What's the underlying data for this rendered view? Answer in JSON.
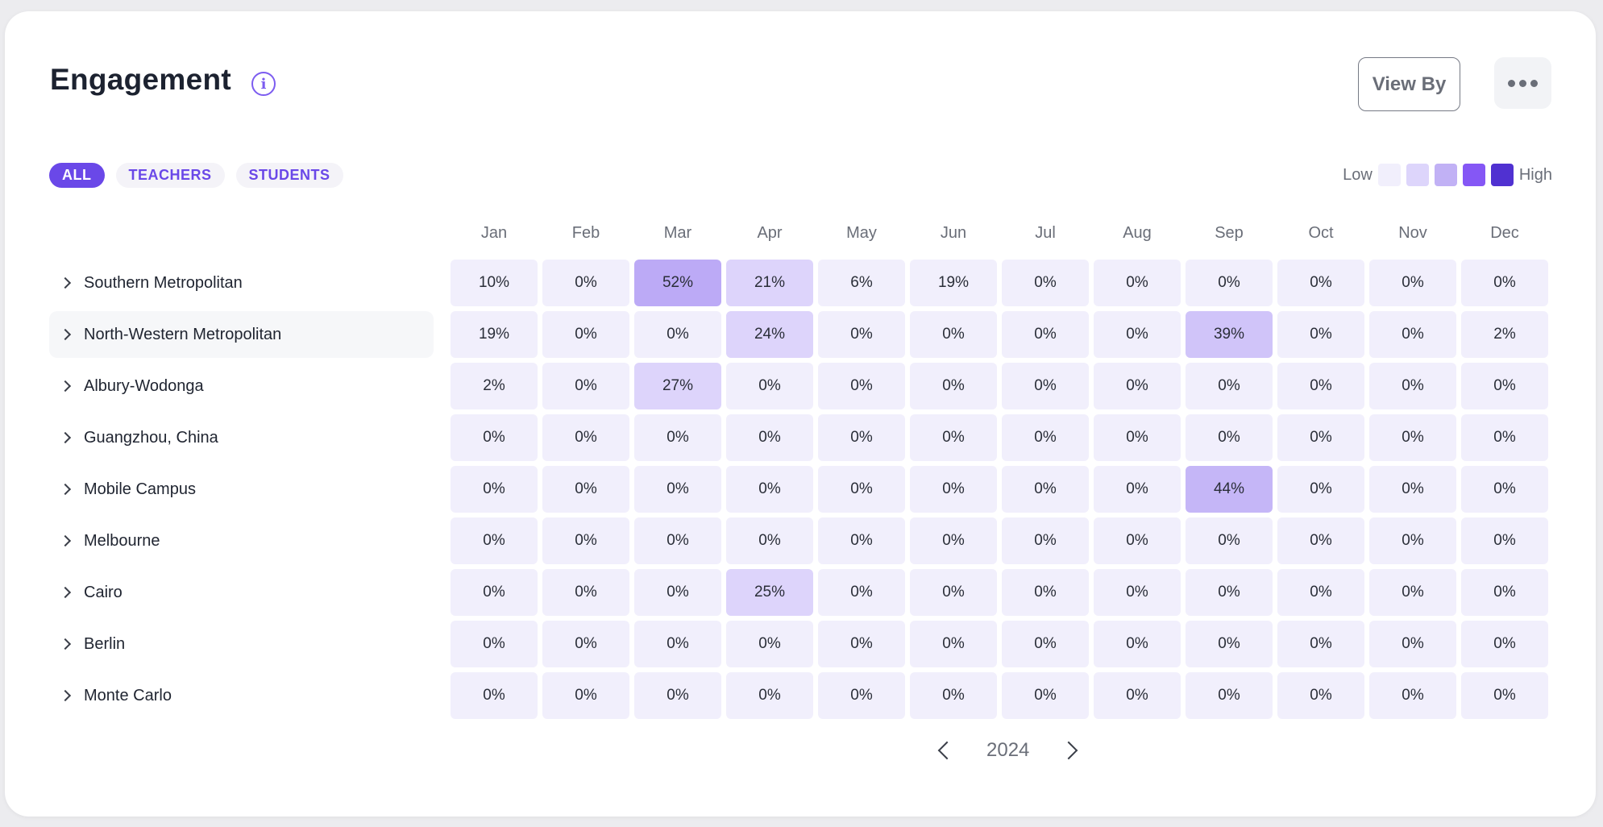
{
  "header": {
    "title": "Engagement",
    "info_icon": "info-icon",
    "view_by_label": "View By",
    "more_icon": "more-horizontal-icon"
  },
  "filters": [
    {
      "label": "ALL",
      "active": true
    },
    {
      "label": "TEACHERS",
      "active": false
    },
    {
      "label": "STUDENTS",
      "active": false
    }
  ],
  "legend": {
    "low": "Low",
    "high": "High",
    "colors": [
      "#f1effc",
      "#ddd5fb",
      "#c1b1f5",
      "#8557f5",
      "#5031d1"
    ]
  },
  "months": [
    "Jan",
    "Feb",
    "Mar",
    "Apr",
    "May",
    "Jun",
    "Jul",
    "Aug",
    "Sep",
    "Oct",
    "Nov",
    "Dec"
  ],
  "rows": [
    {
      "name": "Southern Metropolitan",
      "values": [
        "10%",
        "0%",
        "52%",
        "21%",
        "6%",
        "19%",
        "0%",
        "0%",
        "0%",
        "0%",
        "0%",
        "0%"
      ]
    },
    {
      "name": "North-Western Metropolitan",
      "highlighted": true,
      "values": [
        "19%",
        "0%",
        "0%",
        "24%",
        "0%",
        "0%",
        "0%",
        "0%",
        "39%",
        "0%",
        "0%",
        "2%"
      ]
    },
    {
      "name": "Albury-Wodonga",
      "values": [
        "2%",
        "0%",
        "27%",
        "0%",
        "0%",
        "0%",
        "0%",
        "0%",
        "0%",
        "0%",
        "0%",
        "0%"
      ]
    },
    {
      "name": "Guangzhou, China",
      "values": [
        "0%",
        "0%",
        "0%",
        "0%",
        "0%",
        "0%",
        "0%",
        "0%",
        "0%",
        "0%",
        "0%",
        "0%"
      ]
    },
    {
      "name": "Mobile Campus",
      "values": [
        "0%",
        "0%",
        "0%",
        "0%",
        "0%",
        "0%",
        "0%",
        "0%",
        "44%",
        "0%",
        "0%",
        "0%"
      ]
    },
    {
      "name": "Melbourne",
      "values": [
        "0%",
        "0%",
        "0%",
        "0%",
        "0%",
        "0%",
        "0%",
        "0%",
        "0%",
        "0%",
        "0%",
        "0%"
      ]
    },
    {
      "name": "Cairo",
      "values": [
        "0%",
        "0%",
        "0%",
        "25%",
        "0%",
        "0%",
        "0%",
        "0%",
        "0%",
        "0%",
        "0%",
        "0%"
      ]
    },
    {
      "name": "Berlin",
      "values": [
        "0%",
        "0%",
        "0%",
        "0%",
        "0%",
        "0%",
        "0%",
        "0%",
        "0%",
        "0%",
        "0%",
        "0%"
      ]
    },
    {
      "name": "Monte Carlo",
      "values": [
        "0%",
        "0%",
        "0%",
        "0%",
        "0%",
        "0%",
        "0%",
        "0%",
        "0%",
        "0%",
        "0%",
        "0%"
      ]
    }
  ],
  "pager": {
    "year": "2024",
    "prev_icon": "chevron-left-icon",
    "next_icon": "chevron-right-icon"
  }
}
